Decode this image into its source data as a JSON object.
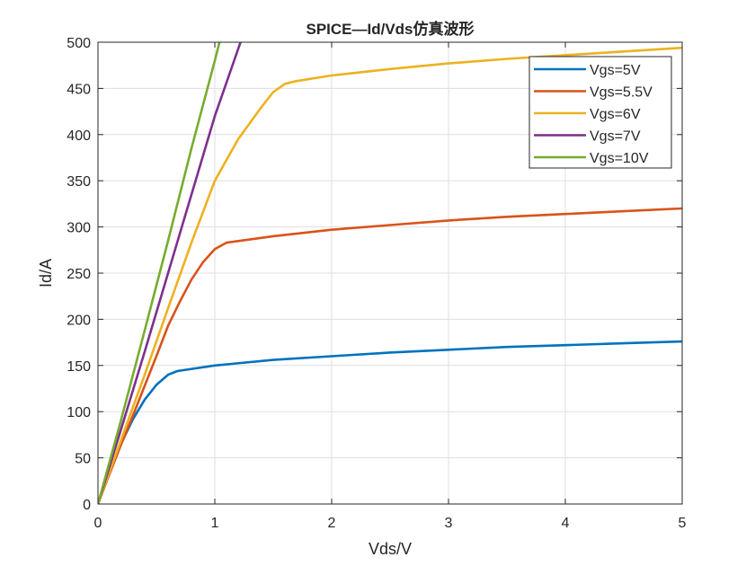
{
  "chart_data": {
    "type": "line",
    "title": "SPICE—Id/Vds仿真波形",
    "xlabel": "Vds/V",
    "ylabel": "Id/A",
    "xlim": [
      0,
      5
    ],
    "ylim": [
      0,
      500
    ],
    "xticks": [
      0,
      1,
      2,
      3,
      4,
      5
    ],
    "yticks": [
      0,
      50,
      100,
      150,
      200,
      250,
      300,
      350,
      400,
      450,
      500
    ],
    "grid": true,
    "legend_position": "top-right",
    "series": [
      {
        "name": "Vgs=5V",
        "color": "#0072BD",
        "points": [
          [
            0,
            0
          ],
          [
            0.1,
            35
          ],
          [
            0.2,
            66
          ],
          [
            0.3,
            92
          ],
          [
            0.4,
            113
          ],
          [
            0.5,
            129
          ],
          [
            0.6,
            140
          ],
          [
            0.68,
            144
          ],
          [
            1,
            150
          ],
          [
            1.5,
            156
          ],
          [
            2,
            160
          ],
          [
            2.5,
            164
          ],
          [
            3,
            167
          ],
          [
            3.5,
            170
          ],
          [
            4,
            172
          ],
          [
            4.5,
            174
          ],
          [
            5,
            176
          ]
        ]
      },
      {
        "name": "Vgs=5.5V",
        "color": "#D95319",
        "points": [
          [
            0,
            0
          ],
          [
            0.1,
            33
          ],
          [
            0.2,
            65
          ],
          [
            0.3,
            96
          ],
          [
            0.4,
            128
          ],
          [
            0.5,
            160
          ],
          [
            0.6,
            193
          ],
          [
            0.7,
            219
          ],
          [
            0.8,
            243
          ],
          [
            0.9,
            262
          ],
          [
            1.0,
            276
          ],
          [
            1.1,
            283
          ],
          [
            1.5,
            290
          ],
          [
            2,
            297
          ],
          [
            2.5,
            302
          ],
          [
            3,
            307
          ],
          [
            3.5,
            311
          ],
          [
            4,
            314
          ],
          [
            4.5,
            317
          ],
          [
            5,
            320
          ]
        ]
      },
      {
        "name": "Vgs=6V",
        "color": "#EDB120",
        "points": [
          [
            0,
            0
          ],
          [
            0.2,
            70
          ],
          [
            0.4,
            140
          ],
          [
            0.6,
            212
          ],
          [
            0.8,
            283
          ],
          [
            1.0,
            350
          ],
          [
            1.2,
            395
          ],
          [
            1.4,
            430
          ],
          [
            1.5,
            446
          ],
          [
            1.6,
            455
          ],
          [
            1.7,
            458
          ],
          [
            2,
            464
          ],
          [
            2.5,
            471
          ],
          [
            3,
            477
          ],
          [
            3.5,
            482
          ],
          [
            4,
            486
          ],
          [
            4.5,
            490
          ],
          [
            5,
            494
          ]
        ]
      },
      {
        "name": "Vgs=7V",
        "color": "#7E2F8E",
        "points": [
          [
            0,
            0
          ],
          [
            0.2,
            82
          ],
          [
            0.4,
            165
          ],
          [
            0.6,
            250
          ],
          [
            0.8,
            335
          ],
          [
            1,
            420
          ],
          [
            1.22,
            500
          ]
        ]
      },
      {
        "name": "Vgs=10V",
        "color": "#77AC30",
        "points": [
          [
            0,
            0
          ],
          [
            0.2,
            92
          ],
          [
            0.4,
            188
          ],
          [
            0.6,
            285
          ],
          [
            0.8,
            385
          ],
          [
            1,
            480
          ],
          [
            1.04,
            500
          ]
        ]
      }
    ]
  }
}
